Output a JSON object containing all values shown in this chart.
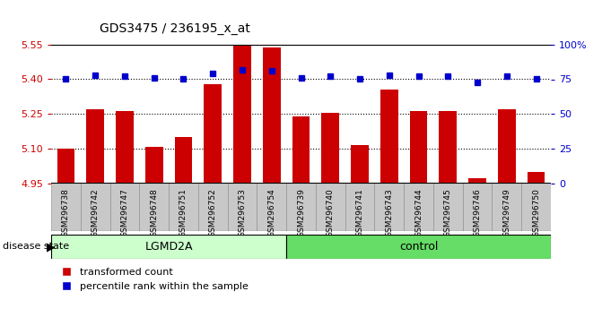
{
  "title": "GDS3475 / 236195_x_at",
  "samples": [
    "GSM296738",
    "GSM296742",
    "GSM296747",
    "GSM296748",
    "GSM296751",
    "GSM296752",
    "GSM296753",
    "GSM296754",
    "GSM296739",
    "GSM296740",
    "GSM296741",
    "GSM296743",
    "GSM296744",
    "GSM296745",
    "GSM296746",
    "GSM296749",
    "GSM296750"
  ],
  "bar_values": [
    5.1,
    5.27,
    5.265,
    5.11,
    5.15,
    5.38,
    5.545,
    5.535,
    5.24,
    5.255,
    5.115,
    5.355,
    5.265,
    5.265,
    4.975,
    5.27,
    5.0
  ],
  "dot_percentiles": [
    75,
    78,
    77,
    76,
    75,
    79,
    82,
    81,
    76,
    77,
    75,
    78,
    77,
    77,
    73,
    77,
    75
  ],
  "groups": [
    {
      "name": "LGMD2A",
      "count": 8,
      "color": "#ccffcc"
    },
    {
      "name": "control",
      "count": 9,
      "color": "#66dd66"
    }
  ],
  "ylim_left": [
    4.95,
    5.55
  ],
  "ylim_right": [
    0,
    100
  ],
  "yticks_left": [
    4.95,
    5.1,
    5.25,
    5.4,
    5.55
  ],
  "yticks_right": [
    0,
    25,
    50,
    75,
    100
  ],
  "dotted_lines": [
    5.1,
    5.25,
    5.4
  ],
  "bar_color": "#cc0000",
  "dot_color": "#0000cc",
  "background_color": "#ffffff",
  "label_bg_color": "#c8c8c8",
  "legend_bar_label": "transformed count",
  "legend_dot_label": "percentile rank within the sample",
  "disease_state_label": "disease state",
  "left_axis_color": "#cc0000",
  "right_axis_color": "#0000cc"
}
